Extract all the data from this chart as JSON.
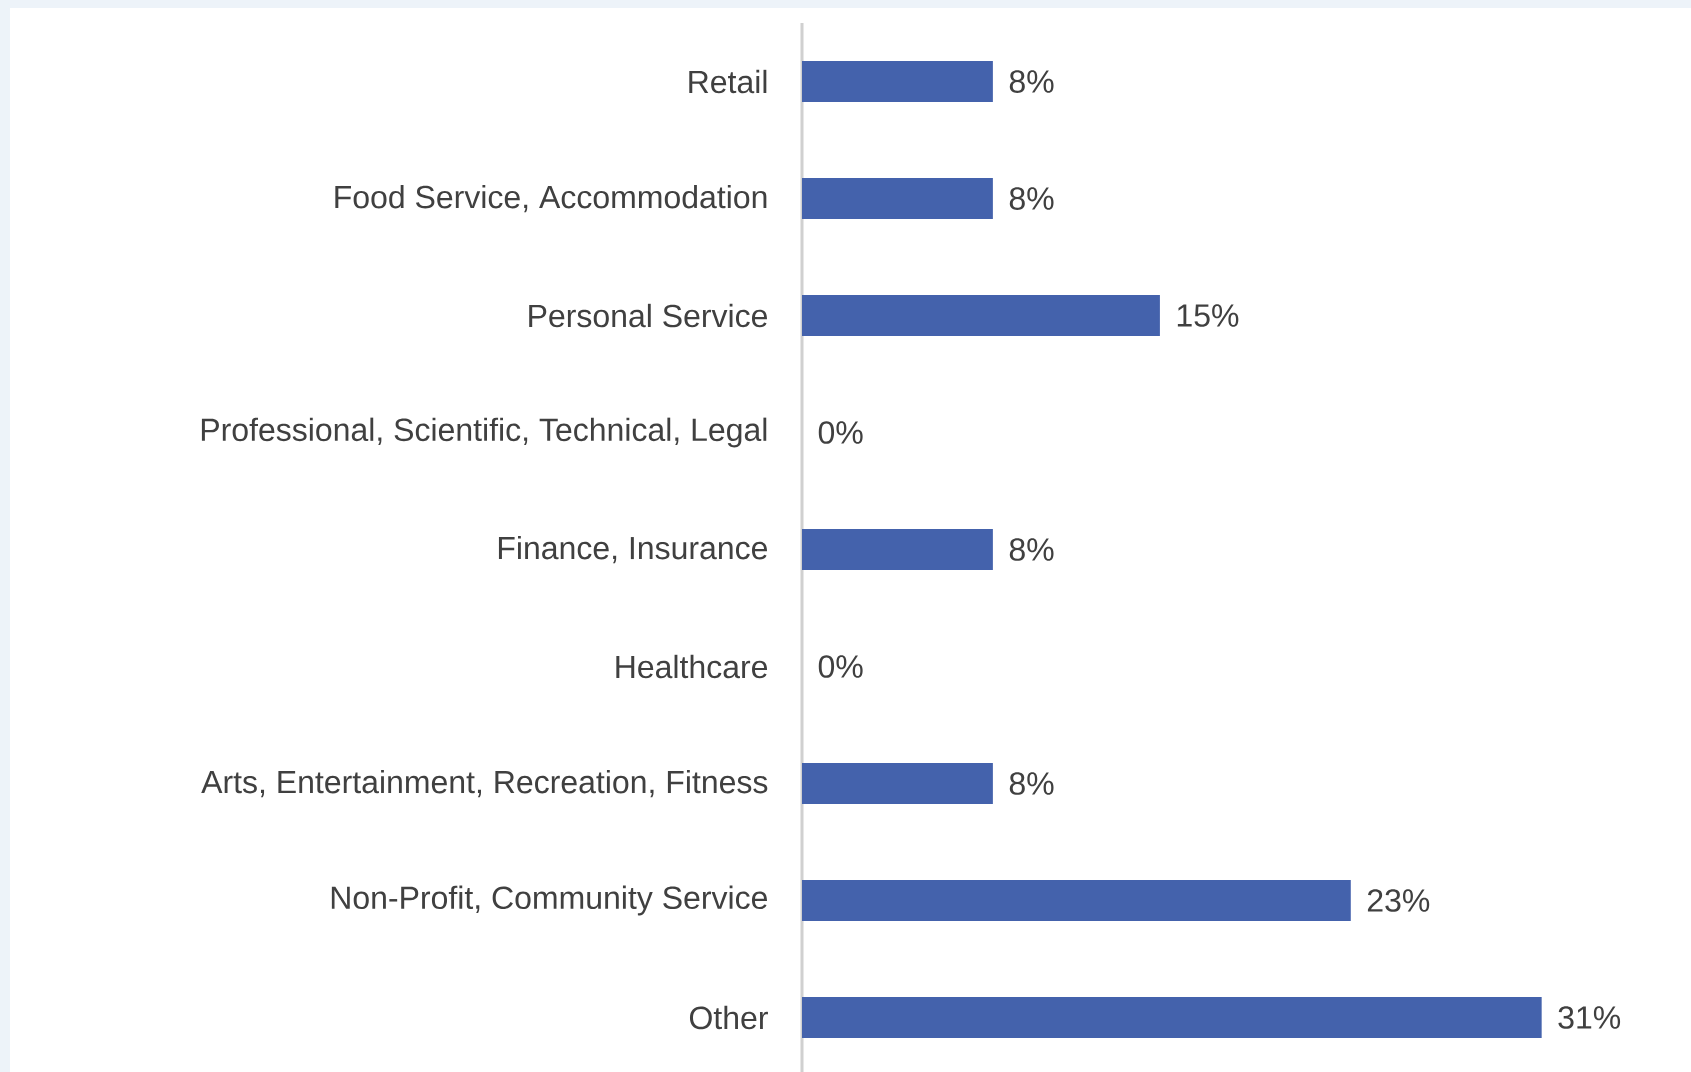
{
  "chart_data": {
    "type": "bar",
    "orientation": "horizontal",
    "categories": [
      "Retail",
      "Food Service, Accommodation",
      "Personal Service",
      "Professional, Scientific, Technical, Legal",
      "Finance, Insurance",
      "Healthcare",
      "Arts, Entertainment, Recreation, Fitness",
      "Non-Profit, Community Service",
      "Other"
    ],
    "values": [
      8,
      8,
      15,
      0,
      8,
      0,
      8,
      23,
      31
    ],
    "value_labels": [
      "8%",
      "8%",
      "15%",
      "0%",
      "8%",
      "0%",
      "8%",
      "23%",
      "31%"
    ],
    "color": "#4462ac"
  }
}
